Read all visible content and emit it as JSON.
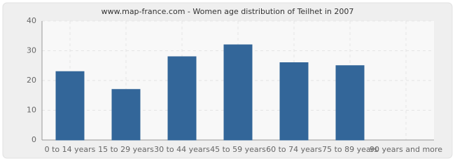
{
  "chart_data": {
    "type": "bar",
    "title": "www.map-france.com - Women age distribution of Teilhet in 2007",
    "categories": [
      "0 to 14 years",
      "15 to 29 years",
      "30 to 44 years",
      "45 to 59 years",
      "60 to 74 years",
      "75 to 89 years",
      "90 years and more"
    ],
    "values": [
      23,
      17,
      28,
      32,
      26,
      25,
      0
    ],
    "color": "#336699",
    "ylim": [
      0,
      40
    ],
    "yticks": [
      0,
      10,
      20,
      30,
      40
    ],
    "grid": true
  }
}
